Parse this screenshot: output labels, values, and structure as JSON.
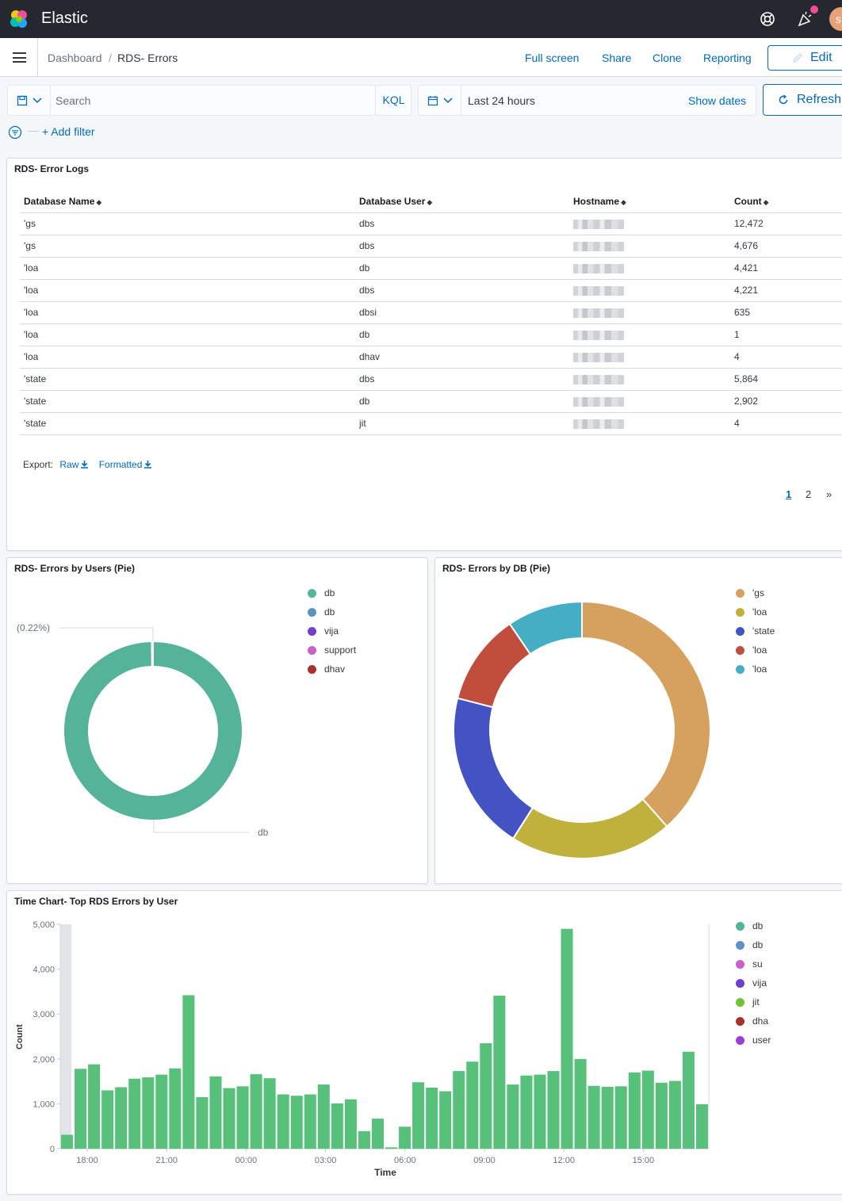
{
  "header": {
    "brand": "Elastic",
    "avatar_initial": "s"
  },
  "nav": {
    "breadcrumbs": [
      "Dashboard",
      "RDS- Errors"
    ],
    "separator": "/",
    "links": [
      "Full screen",
      "Share",
      "Clone",
      "Reporting"
    ],
    "edit_label": "Edit"
  },
  "query": {
    "search_placeholder": "Search",
    "language": "KQL",
    "time_range": "Last 24 hours",
    "show_dates": "Show dates",
    "refresh_label": "Refresh",
    "add_filter": "+ Add filter"
  },
  "table_panel": {
    "title": "RDS- Error Logs",
    "columns": [
      "Database Name",
      "Database User",
      "Hostname",
      "Count"
    ],
    "rows": [
      [
        "'gs",
        "dbs",
        "12,472"
      ],
      [
        "'gs",
        "dbs",
        "4,676"
      ],
      [
        "'loa",
        "db",
        "4,421"
      ],
      [
        "'loa",
        "dbs",
        "4,221"
      ],
      [
        "'loa",
        "dbsi",
        "635"
      ],
      [
        "'loa",
        "db",
        "1"
      ],
      [
        "'loa",
        "dhav",
        "4"
      ],
      [
        "'state",
        "dbs",
        "5,864"
      ],
      [
        "'state",
        "db",
        "2,902"
      ],
      [
        "'state",
        "jit",
        "4"
      ]
    ],
    "export_label": "Export:",
    "export_raw": "Raw",
    "export_formatted": "Formatted",
    "pages": [
      "1",
      "2",
      "»"
    ]
  },
  "pie_users": {
    "title": "RDS- Errors by Users (Pie)",
    "chart_data": {
      "type": "pie",
      "slices": [
        {
          "label": "db",
          "value": 99.78,
          "color": "#54b399"
        },
        {
          "label": "db",
          "value": 0,
          "color": "#6092c0"
        },
        {
          "label": "vija",
          "value": 0,
          "color": "#6f3fcf"
        },
        {
          "label": "support",
          "value": 0,
          "color": "#ca5fcd"
        },
        {
          "label": "dhav",
          "value": 0.22,
          "color": "#a5322d"
        }
      ],
      "annotations": [
        "(0.22%)",
        "db"
      ],
      "legend_position": "top-right"
    }
  },
  "pie_db": {
    "title": "RDS- Errors by DB (Pie)",
    "chart_data": {
      "type": "pie",
      "slices": [
        {
          "label": "'gs",
          "value": 38.5,
          "color": "#d6a05e"
        },
        {
          "label": "'loa",
          "value": 20.5,
          "color": "#c0b13d"
        },
        {
          "label": "'state",
          "value": 20.0,
          "color": "#4353c4"
        },
        {
          "label": "'loa",
          "value": 11.5,
          "color": "#c14d3c"
        },
        {
          "label": "'loa",
          "value": 9.5,
          "color": "#45aec4"
        }
      ],
      "legend_position": "top-right"
    }
  },
  "time_chart": {
    "title": "Time Chart- Top RDS Errors by User",
    "chart_data": {
      "type": "bar",
      "xlabel": "Time",
      "ylabel": "Count",
      "ylim": [
        0,
        5000
      ],
      "yticks": [
        "0",
        "1,000",
        "2,000",
        "3,000",
        "4,000",
        "5,000"
      ],
      "xticks": [
        "18:00",
        "21:00",
        "00:00",
        "03:00",
        "06:00",
        "09:00",
        "12:00",
        "15:00"
      ],
      "values": [
        310,
        1780,
        1880,
        1300,
        1370,
        1560,
        1590,
        1650,
        1790,
        3420,
        1150,
        1610,
        1350,
        1390,
        1660,
        1570,
        1210,
        1180,
        1210,
        1430,
        1010,
        1100,
        390,
        670,
        30,
        490,
        1480,
        1360,
        1280,
        1730,
        1940,
        2350,
        3410,
        1430,
        1630,
        1650,
        1730,
        4900,
        2000,
        1400,
        1380,
        1390,
        1700,
        1740,
        1470,
        1510,
        2160,
        990
      ],
      "bar_color": "#57c17b",
      "series": [
        "db",
        "db",
        "su",
        "vija",
        "jit",
        "dha",
        "user"
      ],
      "series_colors": [
        "#54b399",
        "#6092c0",
        "#ca5fcd",
        "#6f3fcf",
        "#6dc42f",
        "#a5322d",
        "#9b3ed6"
      ],
      "grid": false,
      "legend_position": "right"
    }
  }
}
